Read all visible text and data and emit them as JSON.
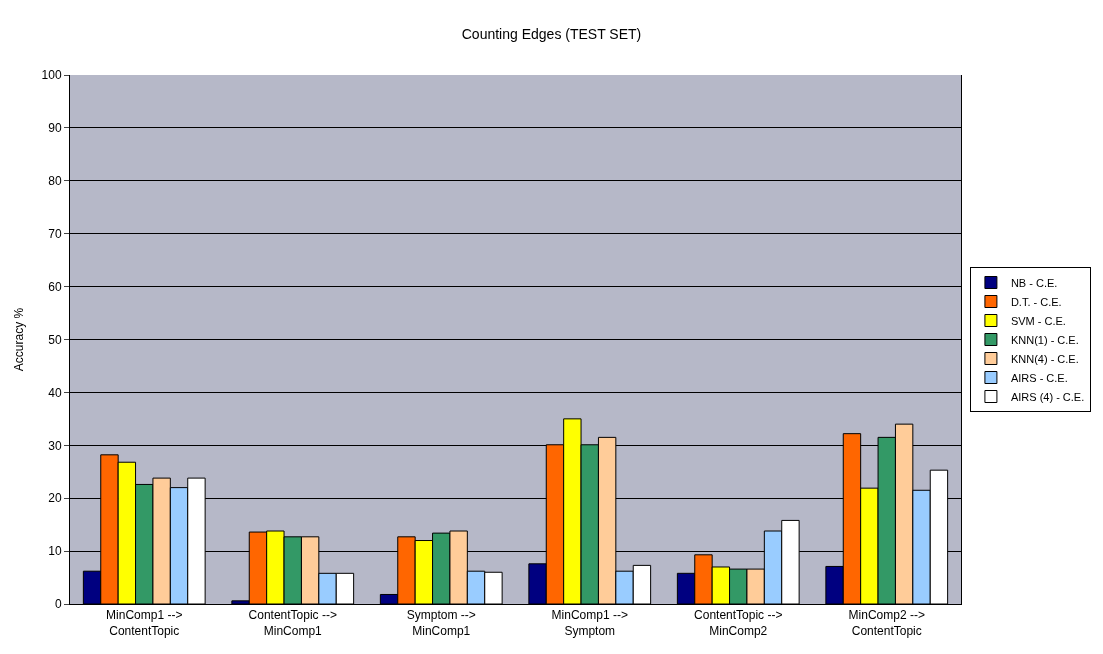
{
  "chart_data": {
    "type": "bar",
    "title": "Counting Edges (TEST SET)",
    "ylabel": "Accuracy %",
    "categories": [
      "MinComp1 -->\nContentTopic",
      "ContentTopic -->\nMinComp1",
      "Symptom -->\nMinComp1",
      "MinComp1 -->\nSymptom",
      "ContentTopic -->\nMinComp2",
      "MinComp2 -->\nContentTopic"
    ],
    "series": [
      {
        "name": "NB - C.E.",
        "color": "#000080",
        "values": [
          6.2,
          0.6,
          1.8,
          7.6,
          5.8,
          7.1
        ]
      },
      {
        "name": "D.T. - C.E.",
        "color": "#ff6600",
        "values": [
          28.2,
          13.6,
          12.7,
          30.1,
          9.3,
          32.2
        ]
      },
      {
        "name": "SVM - C.E.",
        "color": "#ffff00",
        "values": [
          26.8,
          13.8,
          12.0,
          35.0,
          7.0,
          21.9
        ]
      },
      {
        "name": "KNN(1) - C.E.",
        "color": "#339966",
        "values": [
          22.6,
          12.7,
          13.4,
          30.1,
          6.6,
          31.5
        ]
      },
      {
        "name": "KNN(4) - C.E.",
        "color": "#ffcc99",
        "values": [
          23.8,
          12.7,
          13.8,
          31.5,
          6.6,
          34.0
        ]
      },
      {
        "name": "AIRS - C.E.",
        "color": "#99ccff",
        "values": [
          22.0,
          5.8,
          6.2,
          6.2,
          13.8,
          21.5
        ]
      },
      {
        "name": "AIRS (4) - C.E.",
        "color": "#ffffff",
        "values": [
          23.8,
          5.8,
          6.0,
          7.3,
          15.8,
          25.3
        ]
      }
    ],
    "ylim": [
      0,
      100
    ],
    "yticks": [
      0,
      10,
      20,
      30,
      40,
      50,
      60,
      70,
      80,
      90,
      100
    ],
    "grid": "y",
    "legend": "right"
  }
}
